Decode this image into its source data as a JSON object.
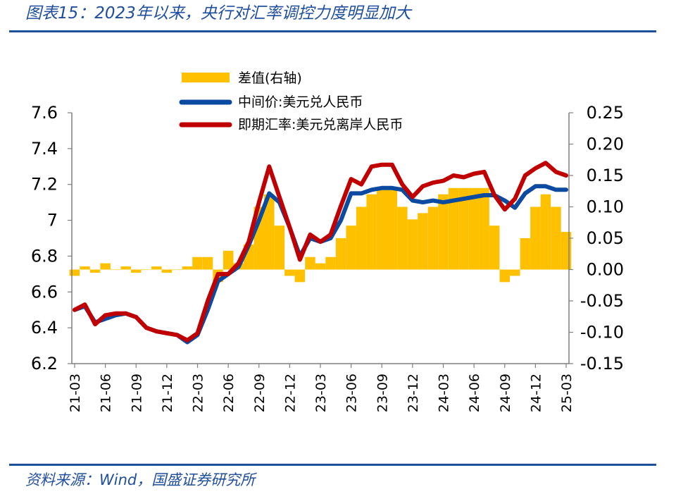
{
  "header": {
    "title": "图表15：2023年以来，央行对汇率调控力度明显加大"
  },
  "footer": {
    "source": "资料来源：Wind，国盛证券研究所"
  },
  "chart_data": {
    "type": "line",
    "title": "",
    "xlabel": "",
    "ylabel": "",
    "x_tick_labels": [
      "21-03",
      "21-06",
      "21-09",
      "21-12",
      "22-03",
      "22-06",
      "22-09",
      "22-12",
      "23-03",
      "23-06",
      "23-09",
      "23-12",
      "24-03",
      "24-06",
      "24-09",
      "24-12",
      "25-03"
    ],
    "left_axis": {
      "ylim": [
        6.2,
        7.6
      ],
      "ticks": [
        "6.2",
        "6.4",
        "6.6",
        "6.8",
        "7",
        "7.2",
        "7.4",
        "7.6"
      ]
    },
    "right_axis": {
      "ylim": [
        -0.15,
        0.25
      ],
      "ticks": [
        "-0.15",
        "-0.10",
        "-0.05",
        "0.00",
        "0.05",
        "0.10",
        "0.15",
        "0.20",
        "0.25"
      ]
    },
    "legend": {
      "position": "top-left"
    },
    "colors": {
      "diff": "#ffc000",
      "mid": "#0a4aa0",
      "spot": "#c00000"
    },
    "series": [
      {
        "name": "差值(右轴)",
        "kind": "area",
        "axis": "right",
        "x": [
          "2021-03",
          "2021-04",
          "2021-05",
          "2021-06",
          "2021-07",
          "2021-08",
          "2021-09",
          "2021-10",
          "2021-11",
          "2021-12",
          "2022-01",
          "2022-02",
          "2022-03",
          "2022-04",
          "2022-05",
          "2022-06",
          "2022-07",
          "2022-08",
          "2022-09",
          "2022-10",
          "2022-11",
          "2022-12",
          "2023-01",
          "2023-02",
          "2023-03",
          "2023-04",
          "2023-05",
          "2023-06",
          "2023-07",
          "2023-08",
          "2023-09",
          "2023-10",
          "2023-11",
          "2023-12",
          "2024-01",
          "2024-02",
          "2024-03",
          "2024-04",
          "2024-05",
          "2024-06",
          "2024-07",
          "2024-08",
          "2024-09",
          "2024-10",
          "2024-11",
          "2024-12",
          "2025-01",
          "2025-02",
          "2025-03"
        ],
        "values": [
          -0.01,
          0.005,
          -0.005,
          0.01,
          0.0,
          0.005,
          -0.005,
          0.0,
          0.005,
          -0.005,
          0.0,
          0.005,
          0.02,
          0.02,
          -0.02,
          0.03,
          0.01,
          0.04,
          0.1,
          0.12,
          0.07,
          -0.01,
          -0.02,
          0.02,
          0.01,
          0.02,
          0.05,
          0.07,
          0.1,
          0.12,
          0.13,
          0.13,
          0.1,
          0.08,
          0.09,
          0.1,
          0.12,
          0.13,
          0.13,
          0.13,
          0.13,
          0.07,
          -0.02,
          -0.01,
          0.05,
          0.1,
          0.12,
          0.1,
          0.06
        ]
      },
      {
        "name": "中间价:美元兑人民币",
        "kind": "line",
        "axis": "left",
        "x": [
          "2021-03",
          "2021-04",
          "2021-05",
          "2021-06",
          "2021-07",
          "2021-08",
          "2021-09",
          "2021-10",
          "2021-11",
          "2021-12",
          "2022-01",
          "2022-02",
          "2022-03",
          "2022-04",
          "2022-05",
          "2022-06",
          "2022-07",
          "2022-08",
          "2022-09",
          "2022-10",
          "2022-11",
          "2022-12",
          "2023-01",
          "2023-02",
          "2023-03",
          "2023-04",
          "2023-05",
          "2023-06",
          "2023-07",
          "2023-08",
          "2023-09",
          "2023-10",
          "2023-11",
          "2023-12",
          "2024-01",
          "2024-02",
          "2024-03",
          "2024-04",
          "2024-05",
          "2024-06",
          "2024-07",
          "2024-08",
          "2024-09",
          "2024-10",
          "2024-11",
          "2024-12",
          "2025-01",
          "2025-02",
          "2025-03"
        ],
        "values": [
          6.5,
          6.52,
          6.43,
          6.45,
          6.47,
          6.48,
          6.46,
          6.4,
          6.38,
          6.37,
          6.36,
          6.32,
          6.36,
          6.5,
          6.66,
          6.7,
          6.74,
          6.86,
          7.0,
          7.15,
          7.1,
          6.96,
          6.8,
          6.9,
          6.88,
          6.9,
          7.0,
          7.15,
          7.15,
          7.17,
          7.18,
          7.18,
          7.17,
          7.11,
          7.1,
          7.11,
          7.1,
          7.11,
          7.12,
          7.13,
          7.14,
          7.14,
          7.11,
          7.07,
          7.15,
          7.19,
          7.19,
          7.17,
          7.17
        ]
      },
      {
        "name": "即期汇率:美元兑离岸人民币",
        "kind": "line",
        "axis": "left",
        "x": [
          "2021-03",
          "2021-04",
          "2021-05",
          "2021-06",
          "2021-07",
          "2021-08",
          "2021-09",
          "2021-10",
          "2021-11",
          "2021-12",
          "2022-01",
          "2022-02",
          "2022-03",
          "2022-04",
          "2022-05",
          "2022-06",
          "2022-07",
          "2022-08",
          "2022-09",
          "2022-10",
          "2022-11",
          "2022-12",
          "2023-01",
          "2023-02",
          "2023-03",
          "2023-04",
          "2023-05",
          "2023-06",
          "2023-07",
          "2023-08",
          "2023-09",
          "2023-10",
          "2023-11",
          "2023-12",
          "2024-01",
          "2024-02",
          "2024-03",
          "2024-04",
          "2024-05",
          "2024-06",
          "2024-07",
          "2024-08",
          "2024-09",
          "2024-10",
          "2024-11",
          "2024-12",
          "2025-01",
          "2025-02",
          "2025-03"
        ],
        "values": [
          6.5,
          6.53,
          6.42,
          6.47,
          6.48,
          6.48,
          6.46,
          6.4,
          6.38,
          6.37,
          6.36,
          6.33,
          6.37,
          6.55,
          6.7,
          6.7,
          6.76,
          6.88,
          7.1,
          7.3,
          7.13,
          6.96,
          6.78,
          6.92,
          6.88,
          6.92,
          7.08,
          7.23,
          7.2,
          7.3,
          7.31,
          7.31,
          7.2,
          7.13,
          7.19,
          7.21,
          7.22,
          7.25,
          7.24,
          7.26,
          7.27,
          7.14,
          7.06,
          7.12,
          7.25,
          7.29,
          7.32,
          7.27,
          7.25
        ]
      }
    ]
  }
}
